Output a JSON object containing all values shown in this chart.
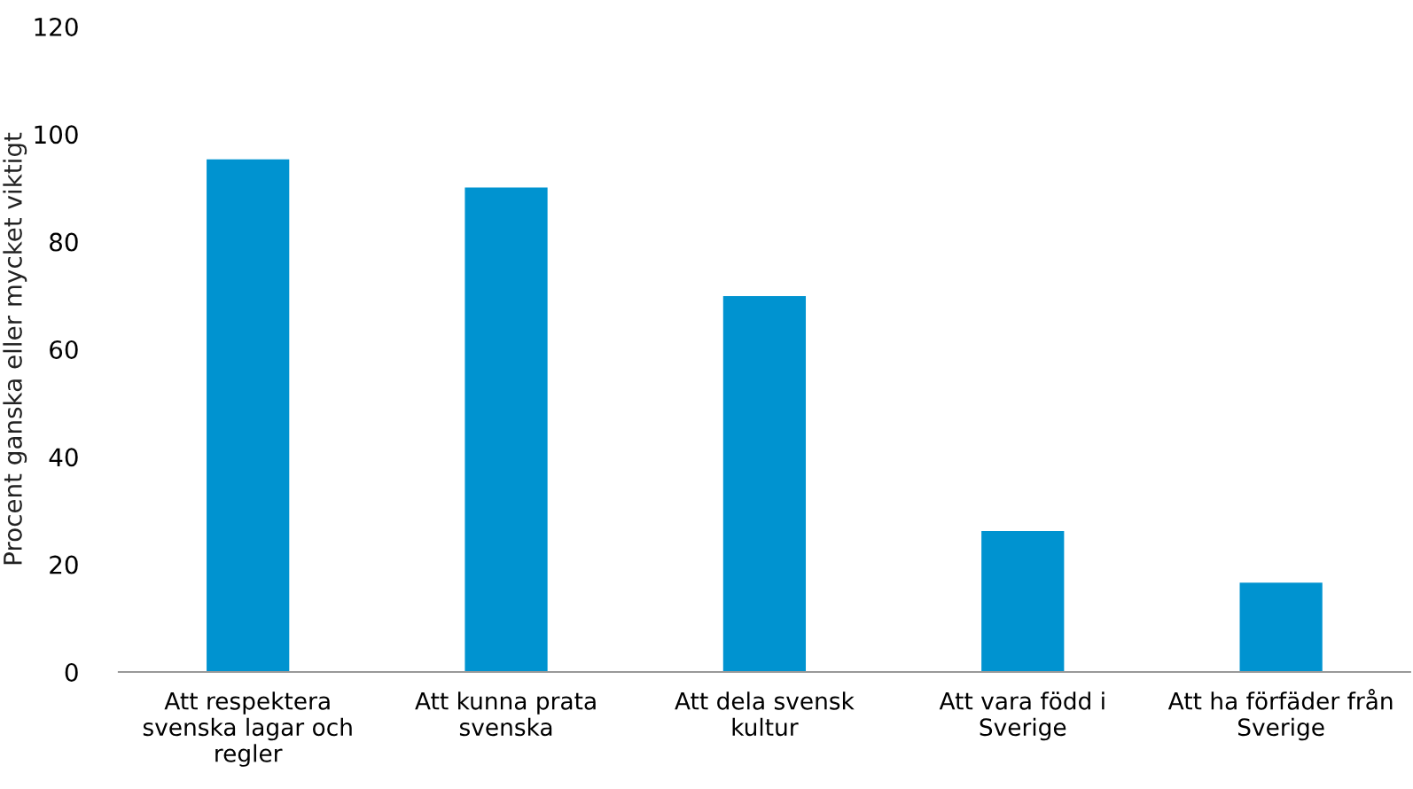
{
  "chart_data": {
    "type": "bar",
    "ylabel": "Procent ganska eller mycket viktigt",
    "categories": [
      "Att respektera svenska lagar och regler",
      "Att kunna prata svenska",
      "Att dela svensk kultur",
      "Att vara född i Sverige",
      "Att ha förfäder från Sverige"
    ],
    "values": [
      95.3,
      90.1,
      69.9,
      26.2,
      16.6
    ],
    "color": "#0093d0",
    "ylim": [
      0,
      120
    ],
    "yticks": [
      0,
      20,
      40,
      60,
      80,
      100,
      120
    ],
    "grid": false,
    "legend": false
  }
}
